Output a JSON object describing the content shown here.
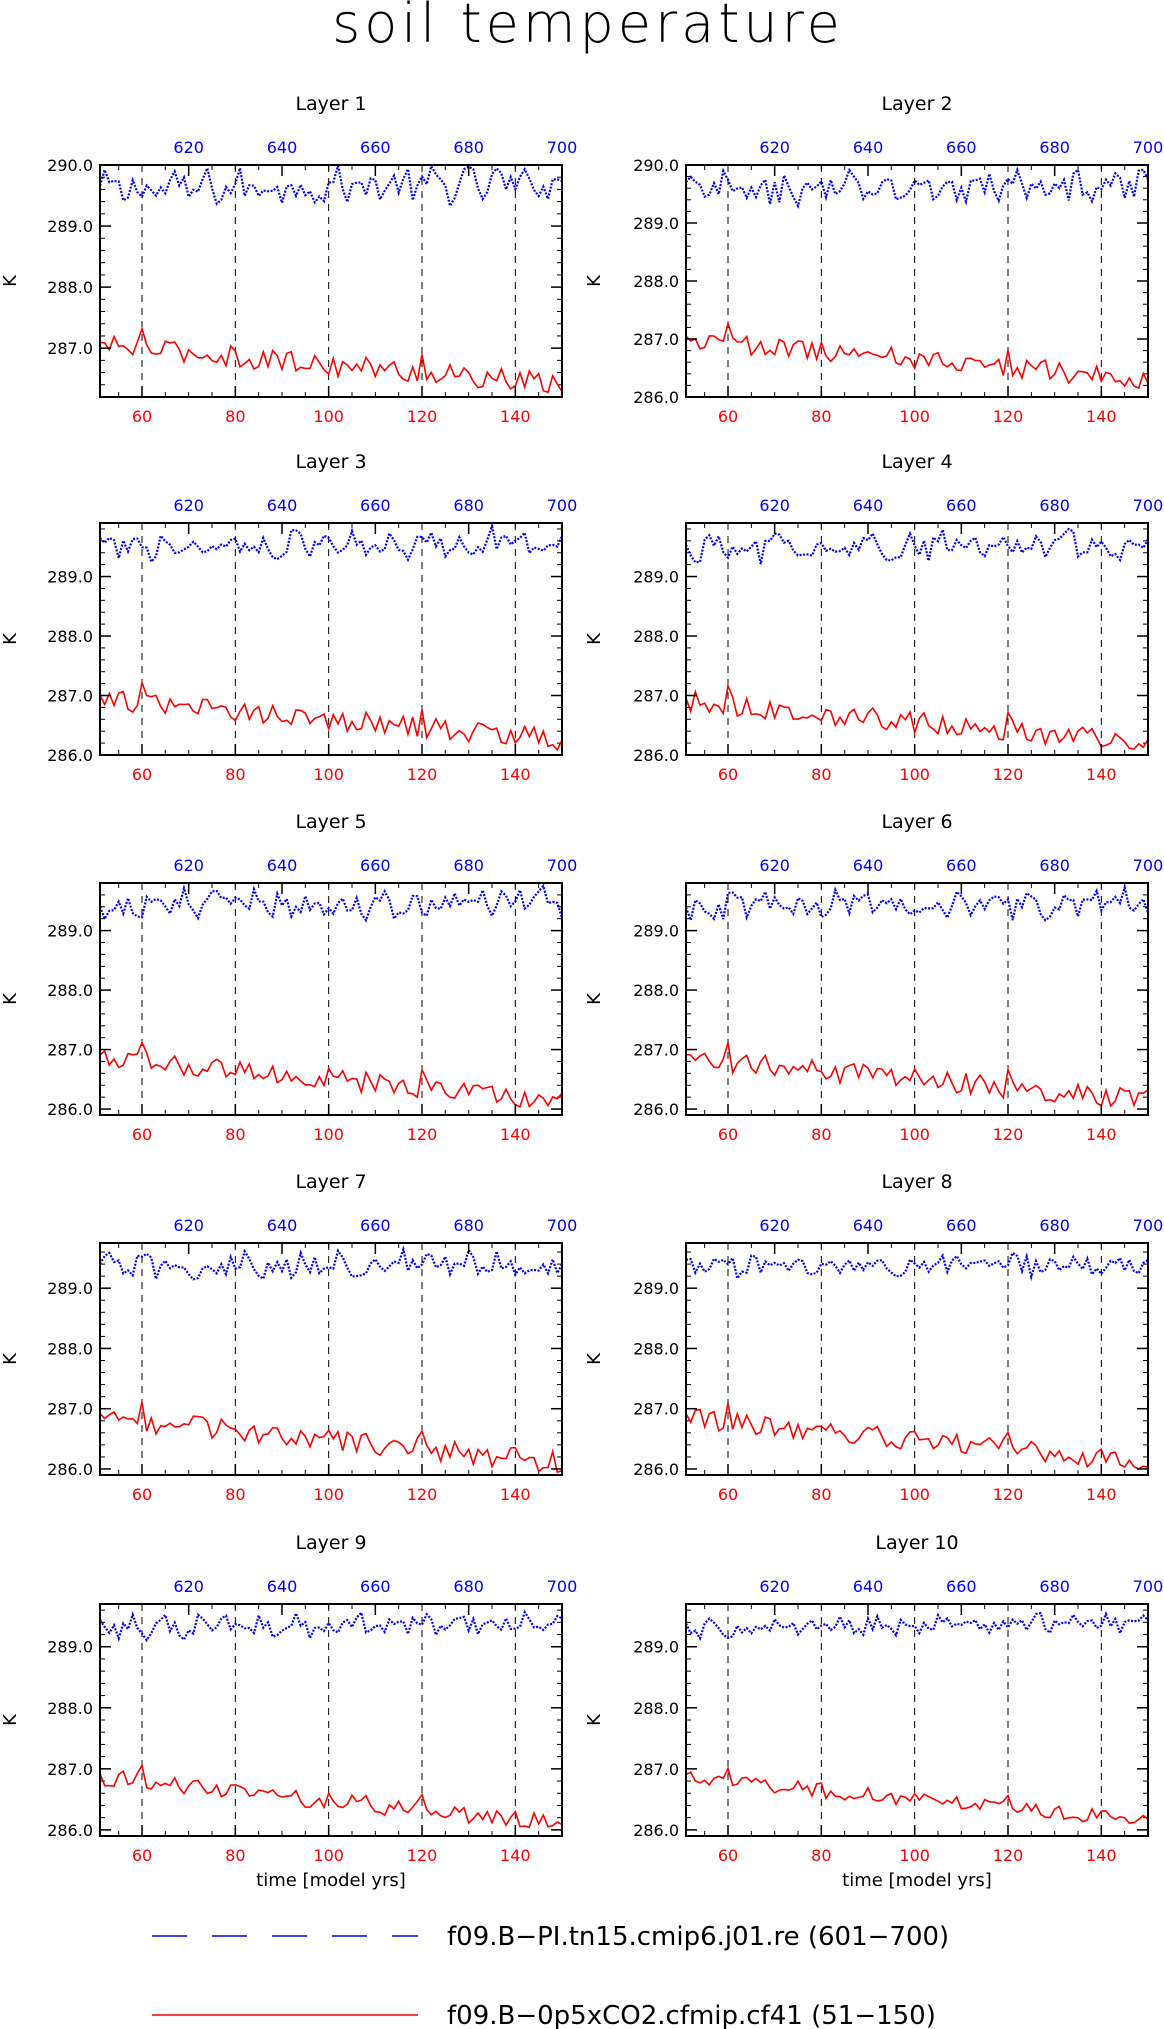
{
  "title": "soil temperature",
  "colors": {
    "series_a": "#0000ff",
    "series_b": "#ff0000",
    "grid": "#000000"
  },
  "legend": [
    {
      "label": "f09.B−PI.tn15.cmip6.j01.re (601−700)",
      "color": "#0000ff",
      "style": "dashed"
    },
    {
      "label": "f09.B−0p5xCO2.cfmip.cf41 (51−150)",
      "color": "#ff0000",
      "style": "solid"
    }
  ],
  "chart_data": {
    "type": "line",
    "ylabel": "K",
    "xlabel": "time [model yrs]",
    "x_bottom": {
      "range": [
        51,
        150
      ],
      "ticks": [
        "60",
        "80",
        "100",
        "120",
        "140"
      ],
      "color": "#ff0000"
    },
    "x_top": {
      "range": [
        601,
        700
      ],
      "ticks": [
        "620",
        "640",
        "660",
        "680",
        "700"
      ],
      "color": "#0000ff"
    },
    "grid": "vertical dashed at bottom-axis ticks",
    "panels": [
      {
        "title": "Layer 1",
        "ylim": [
          286.2,
          290.0
        ],
        "yticks": [
          "290.0",
          "289.0",
          "288.0",
          "287.0"
        ],
        "series": [
          {
            "axis": "top",
            "start": 601,
            "mean": 289.6,
            "end": 289.7,
            "amp": 0.35,
            "style": "dashed",
            "color": "#0000ff"
          },
          {
            "axis": "bottom",
            "start": 51,
            "startval": 287.05,
            "endval": 286.4,
            "amp": 0.3,
            "style": "solid",
            "color": "#ff0000"
          }
        ]
      },
      {
        "title": "Layer 2",
        "ylim": [
          286.0,
          290.0
        ],
        "yticks": [
          "290.0",
          "289.0",
          "288.0",
          "287.0",
          "286.0"
        ],
        "series": [
          {
            "axis": "top",
            "start": 601,
            "mean": 289.55,
            "end": 289.65,
            "amp": 0.35,
            "style": "dashed",
            "color": "#0000ff"
          },
          {
            "axis": "bottom",
            "start": 51,
            "startval": 287.0,
            "endval": 286.3,
            "amp": 0.3,
            "style": "solid",
            "color": "#ff0000"
          }
        ]
      },
      {
        "title": "Layer 3",
        "ylim": [
          286.0,
          289.9
        ],
        "yticks": [
          "289.0",
          "288.0",
          "287.0",
          "286.0"
        ],
        "series": [
          {
            "axis": "top",
            "start": 601,
            "mean": 289.5,
            "end": 289.6,
            "amp": 0.3,
            "style": "dashed",
            "color": "#0000ff"
          },
          {
            "axis": "bottom",
            "start": 51,
            "startval": 286.95,
            "endval": 286.25,
            "amp": 0.3,
            "style": "solid",
            "color": "#ff0000"
          }
        ]
      },
      {
        "title": "Layer 4",
        "ylim": [
          286.0,
          289.9
        ],
        "yticks": [
          "289.0",
          "288.0",
          "287.0",
          "286.0"
        ],
        "series": [
          {
            "axis": "top",
            "start": 601,
            "mean": 289.45,
            "end": 289.55,
            "amp": 0.3,
            "style": "dashed",
            "color": "#0000ff"
          },
          {
            "axis": "bottom",
            "start": 51,
            "startval": 286.9,
            "endval": 286.2,
            "amp": 0.3,
            "style": "solid",
            "color": "#ff0000"
          }
        ]
      },
      {
        "title": "Layer 5",
        "ylim": [
          285.9,
          289.8
        ],
        "yticks": [
          "289.0",
          "288.0",
          "287.0",
          "286.0"
        ],
        "series": [
          {
            "axis": "top",
            "start": 601,
            "mean": 289.4,
            "end": 289.5,
            "amp": 0.3,
            "style": "dashed",
            "color": "#0000ff"
          },
          {
            "axis": "bottom",
            "start": 51,
            "startval": 286.85,
            "endval": 286.15,
            "amp": 0.3,
            "style": "solid",
            "color": "#ff0000"
          }
        ]
      },
      {
        "title": "Layer 6",
        "ylim": [
          285.9,
          289.8
        ],
        "yticks": [
          "289.0",
          "288.0",
          "287.0",
          "286.0"
        ],
        "series": [
          {
            "axis": "top",
            "start": 601,
            "mean": 289.4,
            "end": 289.45,
            "amp": 0.3,
            "style": "dashed",
            "color": "#0000ff"
          },
          {
            "axis": "bottom",
            "start": 51,
            "startval": 286.85,
            "endval": 286.15,
            "amp": 0.3,
            "style": "solid",
            "color": "#ff0000"
          }
        ]
      },
      {
        "title": "Layer 7",
        "ylim": [
          285.9,
          289.75
        ],
        "yticks": [
          "289.0",
          "288.0",
          "287.0",
          "286.0"
        ],
        "series": [
          {
            "axis": "top",
            "start": 601,
            "mean": 289.35,
            "end": 289.4,
            "amp": 0.28,
            "style": "dashed",
            "color": "#0000ff"
          },
          {
            "axis": "bottom",
            "start": 51,
            "startval": 286.85,
            "endval": 286.1,
            "amp": 0.3,
            "style": "solid",
            "color": "#ff0000"
          }
        ]
      },
      {
        "title": "Layer 8",
        "ylim": [
          285.9,
          289.75
        ],
        "yticks": [
          "289.0",
          "288.0",
          "287.0",
          "286.0"
        ],
        "series": [
          {
            "axis": "top",
            "start": 601,
            "mean": 289.35,
            "end": 289.4,
            "amp": 0.25,
            "style": "dashed",
            "color": "#0000ff"
          },
          {
            "axis": "bottom",
            "start": 51,
            "startval": 286.85,
            "endval": 286.1,
            "amp": 0.28,
            "style": "solid",
            "color": "#ff0000"
          }
        ]
      },
      {
        "title": "Layer 9",
        "ylim": [
          285.9,
          289.7
        ],
        "yticks": [
          "289.0",
          "288.0",
          "287.0",
          "286.0"
        ],
        "series": [
          {
            "axis": "top",
            "start": 601,
            "mean": 289.3,
            "end": 289.4,
            "amp": 0.22,
            "style": "dashed",
            "color": "#0000ff"
          },
          {
            "axis": "bottom",
            "start": 51,
            "startval": 286.85,
            "endval": 286.1,
            "amp": 0.25,
            "style": "solid",
            "color": "#ff0000"
          }
        ]
      },
      {
        "title": "Layer 10",
        "ylim": [
          285.9,
          289.7
        ],
        "yticks": [
          "289.0",
          "288.0",
          "287.0",
          "286.0"
        ],
        "series": [
          {
            "axis": "top",
            "start": 601,
            "mean": 289.3,
            "end": 289.4,
            "amp": 0.18,
            "style": "dashed",
            "color": "#0000ff"
          },
          {
            "axis": "bottom",
            "start": 51,
            "startval": 286.85,
            "endval": 286.15,
            "amp": 0.2,
            "style": "solid",
            "color": "#ff0000"
          }
        ]
      }
    ]
  }
}
